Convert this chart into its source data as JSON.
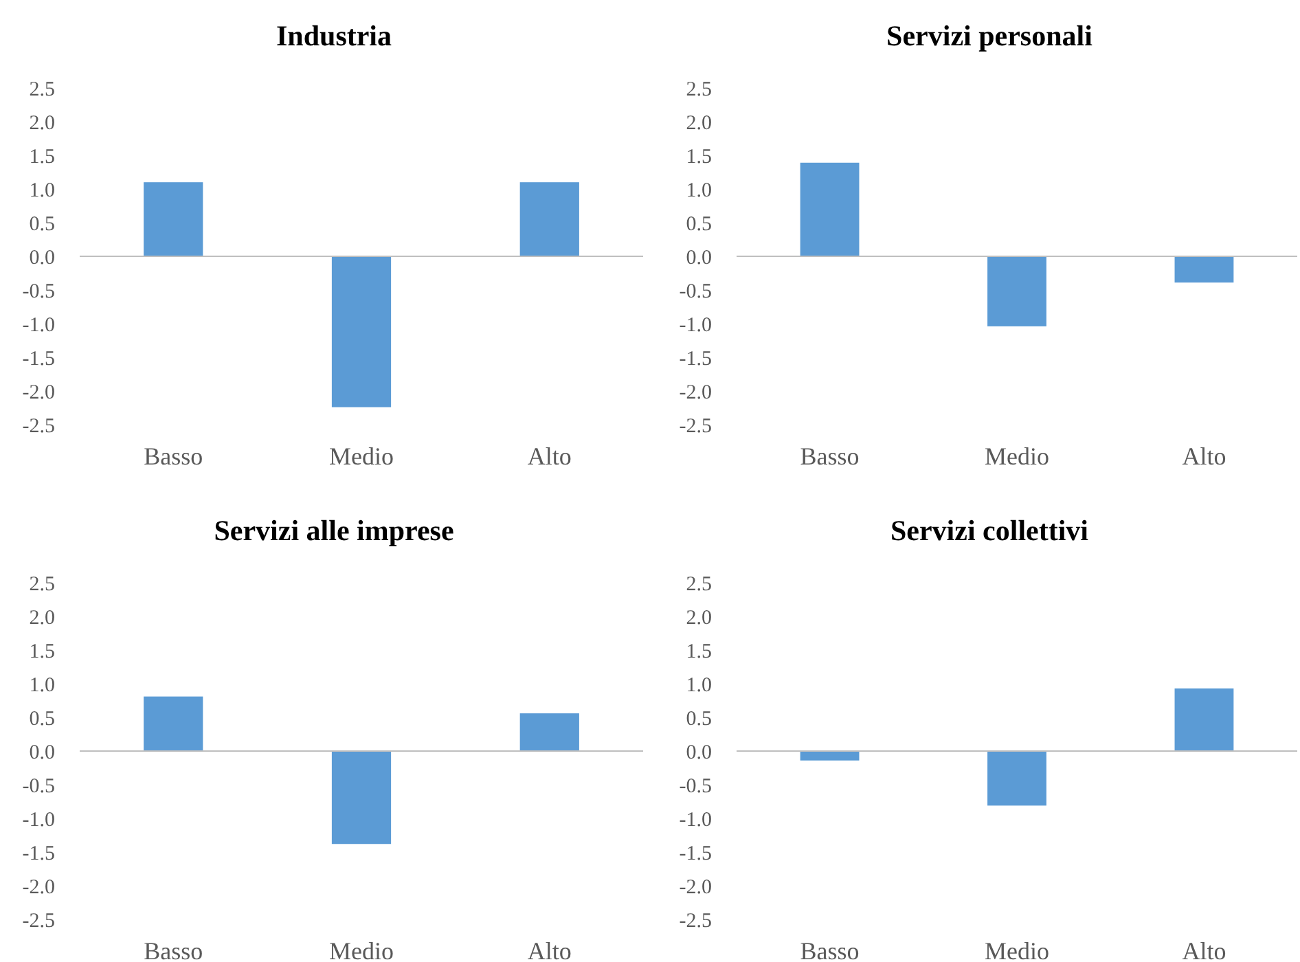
{
  "chart_data": [
    {
      "type": "bar",
      "title": "Industria",
      "categories": [
        "Basso",
        "Medio",
        "Alto"
      ],
      "values": [
        1.1,
        -2.24,
        1.1
      ],
      "color": "#5b9bd5",
      "ylim": [
        -2.5,
        2.5
      ],
      "yticks": [
        {
          "value": 2.5,
          "label": "2.5"
        },
        {
          "value": 2,
          "label": "2.0"
        },
        {
          "value": 1.5,
          "label": "1.5"
        },
        {
          "value": 1,
          "label": "1.0"
        },
        {
          "value": 0.5,
          "label": "0.5"
        },
        {
          "value": 0,
          "label": "0.0"
        },
        {
          "value": -0.5,
          "label": "-0.5"
        },
        {
          "value": -1,
          "label": "-1.0"
        },
        {
          "value": -1.5,
          "label": "-1.5"
        },
        {
          "value": -2,
          "label": "-2.0"
        },
        {
          "value": -2.5,
          "label": "-2.5"
        }
      ]
    },
    {
      "type": "bar",
      "title": "Servizi personali",
      "categories": [
        "Basso",
        "Medio",
        "Alto"
      ],
      "values": [
        1.39,
        -1.04,
        -0.39
      ],
      "color": "#5b9bd5",
      "ylim": [
        -2.5,
        2.5
      ],
      "yticks": [
        {
          "value": 2.5,
          "label": "2.5"
        },
        {
          "value": 2,
          "label": "2.0"
        },
        {
          "value": 1.5,
          "label": "1.5"
        },
        {
          "value": 1,
          "label": "1.0"
        },
        {
          "value": 0.5,
          "label": "0.5"
        },
        {
          "value": 0,
          "label": "0.0"
        },
        {
          "value": -0.5,
          "label": "-0.5"
        },
        {
          "value": -1,
          "label": "-1.0"
        },
        {
          "value": -1.5,
          "label": "-1.5"
        },
        {
          "value": -2,
          "label": "-2.0"
        },
        {
          "value": -2.5,
          "label": "-2.5"
        }
      ]
    },
    {
      "type": "bar",
      "title": "Servizi alle imprese",
      "categories": [
        "Basso",
        "Medio",
        "Alto"
      ],
      "values": [
        0.81,
        -1.38,
        0.56
      ],
      "color": "#5b9bd5",
      "ylim": [
        -2.5,
        2.5
      ],
      "yticks": [
        {
          "value": 2.5,
          "label": "2.5"
        },
        {
          "value": 2,
          "label": "2.0"
        },
        {
          "value": 1.5,
          "label": "1.5"
        },
        {
          "value": 1,
          "label": "1.0"
        },
        {
          "value": 0.5,
          "label": "0.5"
        },
        {
          "value": 0,
          "label": "0.0"
        },
        {
          "value": -0.5,
          "label": "-0.5"
        },
        {
          "value": -1,
          "label": "-1.0"
        },
        {
          "value": -1.5,
          "label": "-1.5"
        },
        {
          "value": -2,
          "label": "-2.0"
        },
        {
          "value": -2.5,
          "label": "-2.5"
        }
      ]
    },
    {
      "type": "bar",
      "title": "Servizi collettivi",
      "categories": [
        "Basso",
        "Medio",
        "Alto"
      ],
      "values": [
        -0.14,
        -0.81,
        0.93
      ],
      "color": "#5b9bd5",
      "ylim": [
        -2.5,
        2.5
      ],
      "yticks": [
        {
          "value": 2.5,
          "label": "2.5"
        },
        {
          "value": 2,
          "label": "2.0"
        },
        {
          "value": 1.5,
          "label": "1.5"
        },
        {
          "value": 1,
          "label": "1.0"
        },
        {
          "value": 0.5,
          "label": "0.5"
        },
        {
          "value": 0,
          "label": "0.0"
        },
        {
          "value": -0.5,
          "label": "-0.5"
        },
        {
          "value": -1,
          "label": "-1.0"
        },
        {
          "value": -1.5,
          "label": "-1.5"
        },
        {
          "value": -2,
          "label": "-2.0"
        },
        {
          "value": -2.5,
          "label": "-2.5"
        }
      ]
    }
  ]
}
